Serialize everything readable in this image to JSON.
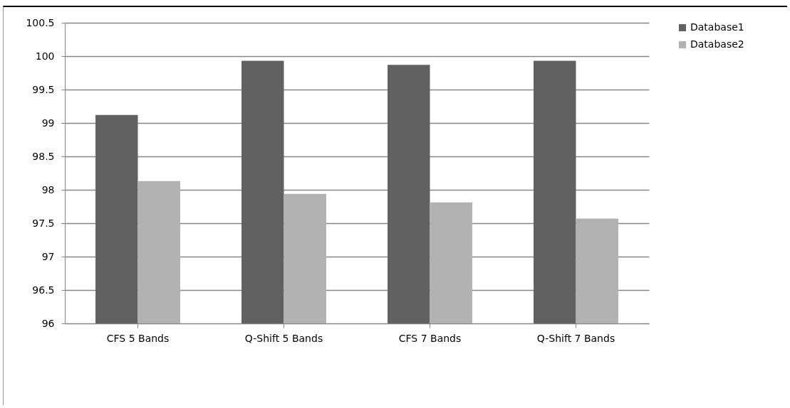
{
  "chart_data": {
    "type": "bar",
    "categories": [
      "CFS 5 Bands",
      "Q-Shift 5 Bands",
      "CFS 7 Bands",
      "Q-Shift 7 Bands"
    ],
    "series": [
      {
        "name": "Database1",
        "color": "#616161",
        "values": [
          99.12,
          99.93,
          99.87,
          99.93
        ]
      },
      {
        "name": "Database2",
        "color": "#b2b2b2",
        "values": [
          98.13,
          97.94,
          97.81,
          97.57
        ]
      }
    ],
    "ylim": [
      96,
      100.5
    ],
    "yticks": [
      96,
      96.5,
      97,
      97.5,
      98,
      98.5,
      99,
      99.5,
      100,
      100.5
    ],
    "grid": "y",
    "legend": "right"
  }
}
